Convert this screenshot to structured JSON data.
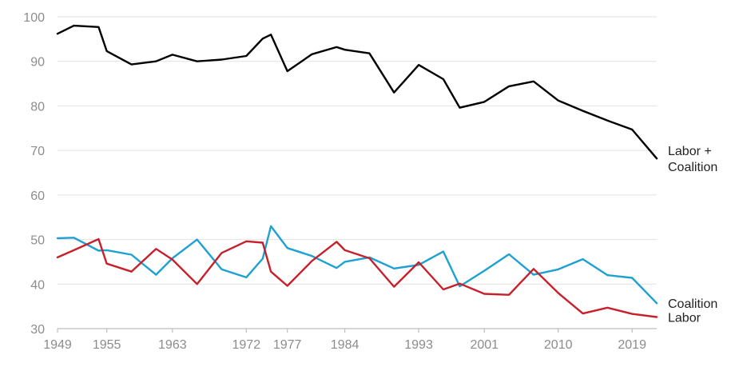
{
  "chart_data": {
    "type": "line",
    "title": "",
    "xlabel": "",
    "ylabel": "",
    "ylim": [
      30,
      100
    ],
    "yticks": [
      30,
      40,
      50,
      60,
      70,
      80,
      90,
      100
    ],
    "xlim": [
      1949,
      2022
    ],
    "xticks": [
      1949,
      1955,
      1963,
      1972,
      1977,
      1984,
      1993,
      2001,
      2010,
      2019
    ],
    "grid": true,
    "legend": "direct labels at line ends (right)",
    "x": [
      1949,
      1951,
      1954,
      1955,
      1958,
      1961,
      1963,
      1966,
      1969,
      1972,
      1974,
      1975,
      1977,
      1980,
      1983,
      1984,
      1987,
      1990,
      1993,
      1996,
      1998,
      2001,
      2004,
      2007,
      2010,
      2013,
      2016,
      2019,
      2022
    ],
    "series": [
      {
        "name": "Labor + Coalition",
        "color": "#000000",
        "values": [
          96.2,
          98.0,
          97.7,
          92.3,
          89.3,
          90.0,
          91.5,
          90.0,
          90.4,
          91.2,
          95.1,
          96.0,
          87.8,
          91.6,
          93.2,
          92.6,
          91.8,
          83.0,
          89.2,
          86.0,
          79.6,
          80.9,
          84.4,
          85.5,
          81.2,
          78.9,
          76.7,
          74.7,
          68.2
        ]
      },
      {
        "name": "Coalition",
        "color": "#1da1d1",
        "values": [
          50.3,
          50.4,
          47.5,
          47.6,
          46.6,
          42.1,
          45.8,
          50.0,
          43.3,
          41.5,
          45.7,
          53.0,
          48.1,
          46.3,
          43.6,
          45.0,
          46.0,
          43.5,
          44.3,
          47.3,
          39.5,
          43.0,
          46.7,
          42.1,
          43.3,
          45.6,
          42.0,
          41.4,
          35.7
        ]
      },
      {
        "name": "Labor",
        "color": "#c8202a",
        "values": [
          46.0,
          47.6,
          50.1,
          44.6,
          42.8,
          47.9,
          45.5,
          40.0,
          47.0,
          49.6,
          49.3,
          42.8,
          39.6,
          45.2,
          49.5,
          47.6,
          45.8,
          39.4,
          44.9,
          38.8,
          40.1,
          37.8,
          37.6,
          43.4,
          38.0,
          33.4,
          34.7,
          33.3,
          32.6
        ]
      }
    ],
    "end_labels": [
      {
        "series": "Labor + Coalition",
        "lines": [
          "Labor +",
          "Coalition"
        ]
      },
      {
        "series": "Coalition",
        "lines": [
          "Coalition"
        ]
      },
      {
        "series": "Labor",
        "lines": [
          "Labor"
        ]
      }
    ]
  }
}
